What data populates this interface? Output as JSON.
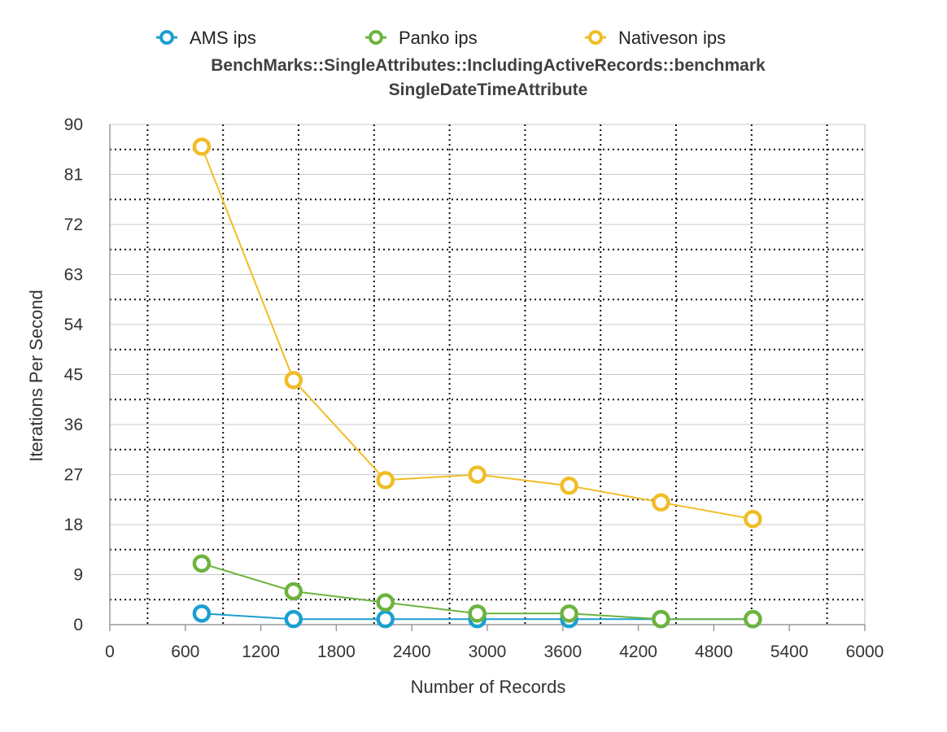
{
  "chart_data": {
    "type": "line",
    "title": "BenchMarks::SingleAttributes::IncludingActiveRecords::benchmark",
    "subtitle": "SingleDateTimeAttribute",
    "xlabel": "Number of Records",
    "ylabel": "Iterations Per Second",
    "xlim": [
      0,
      6000
    ],
    "ylim": [
      0,
      90
    ],
    "xticks": [
      "0",
      "600",
      "1200",
      "1800",
      "2400",
      "3000",
      "3600",
      "4200",
      "4800",
      "5400",
      "6000"
    ],
    "yticks": [
      "0",
      "9",
      "18",
      "27",
      "36",
      "45",
      "54",
      "63",
      "72",
      "81",
      "90"
    ],
    "grid": true,
    "legend_position": "top",
    "x": [
      730,
      1460,
      2190,
      2920,
      3650,
      4380,
      5110
    ],
    "series": [
      {
        "name": "AMS ips",
        "color": "#1a9fd0",
        "values": [
          2,
          1,
          1,
          1,
          1,
          1,
          1
        ]
      },
      {
        "name": "Panko ips",
        "color": "#6db33f",
        "values": [
          11,
          6,
          4,
          2,
          2,
          1,
          1
        ]
      },
      {
        "name": "Nativeson ips",
        "color": "#f0bd27",
        "values": [
          86,
          44,
          26,
          27,
          25,
          22,
          19
        ]
      }
    ]
  }
}
